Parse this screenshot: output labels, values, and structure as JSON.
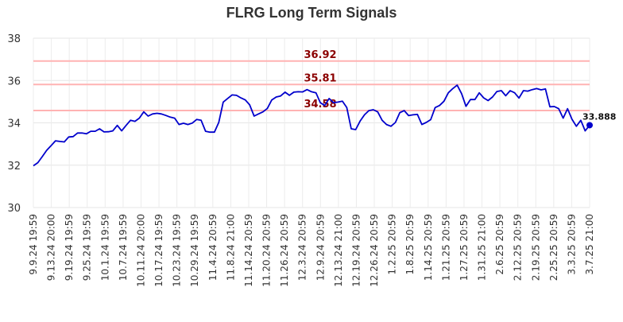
{
  "chart_data": {
    "type": "line",
    "title": "FLRG Long Term Signals",
    "ylim": [
      30,
      38
    ],
    "yticks": [
      30,
      32,
      34,
      36,
      38
    ],
    "grid": true,
    "line_color": "#0000cc",
    "reference_color": "#ffb3b3",
    "reference_label_color": "#8b0000",
    "x_tick_labels": [
      "9.9.24 19:59",
      "9.13.24 20:00",
      "9.19.24 19:59",
      "9.25.24 19:59",
      "10.1.24 19:59",
      "10.7.24 19:59",
      "10.11.24 20:00",
      "10.17.24 19:59",
      "10.23.24 19:59",
      "10.29.24 19:59",
      "11.4.24 20:59",
      "11.8.24 21:00",
      "11.14.24 20:59",
      "11.20.24 20:59",
      "11.26.24 20:59",
      "12.3.24 20:59",
      "12.9.24 20:59",
      "12.13.24 21:00",
      "12.19.24 20:59",
      "12.26.24 20:59",
      "1.2.25 20:59",
      "1.8.25 20:59",
      "1.14.25 20:59",
      "1.21.25 20:59",
      "1.27.25 20:59",
      "1.31.25 21:00",
      "2.6.25 20:59",
      "2.12.25 20:59",
      "2.19.25 20:59",
      "2.25.25 20:59",
      "3.3.25 20:59",
      "3.7.25 21:00"
    ],
    "reference_lines": [
      {
        "value": 36.92,
        "label": "36.92"
      },
      {
        "value": 35.81,
        "label": "35.81"
      },
      {
        "value": 34.58,
        "label": "34.58"
      }
    ],
    "last_value_label": "33.888",
    "series": [
      {
        "values": [
          31.97,
          32.12,
          32.4,
          32.7,
          32.92,
          33.15,
          33.12,
          33.1,
          33.33,
          33.35,
          33.52,
          33.52,
          33.48,
          33.6,
          33.6,
          33.72,
          33.57,
          33.58,
          33.62,
          33.88,
          33.62,
          33.88,
          34.12,
          34.07,
          34.22,
          34.52,
          34.32,
          34.42,
          34.45,
          34.42,
          34.35,
          34.27,
          34.22,
          33.92,
          33.98,
          33.92,
          33.99,
          34.16,
          34.12,
          33.6,
          33.56,
          33.56,
          34.02,
          34.98,
          35.15,
          35.32,
          35.3,
          35.18,
          35.08,
          34.85,
          34.32,
          34.42,
          34.52,
          34.68,
          35.08,
          35.22,
          35.27,
          35.45,
          35.3,
          35.45,
          35.47,
          35.46,
          35.57,
          35.47,
          35.42,
          34.95,
          34.82,
          35.15,
          34.95,
          34.98,
          35.02,
          34.72,
          33.72,
          33.68,
          34.08,
          34.38,
          34.58,
          34.62,
          34.52,
          34.12,
          33.92,
          33.84,
          34.02,
          34.48,
          34.58,
          34.34,
          34.38,
          34.4,
          33.92,
          34.02,
          34.15,
          34.72,
          34.82,
          35.02,
          35.42,
          35.62,
          35.78,
          35.38,
          34.78,
          35.1,
          35.1,
          35.42,
          35.18,
          35.05,
          35.22,
          35.48,
          35.52,
          35.28,
          35.52,
          35.42,
          35.17,
          35.52,
          35.5,
          35.57,
          35.62,
          35.56,
          35.6,
          34.76,
          34.77,
          34.67,
          34.22,
          34.67,
          34.17,
          33.84,
          34.12,
          33.62,
          33.888
        ]
      }
    ]
  }
}
